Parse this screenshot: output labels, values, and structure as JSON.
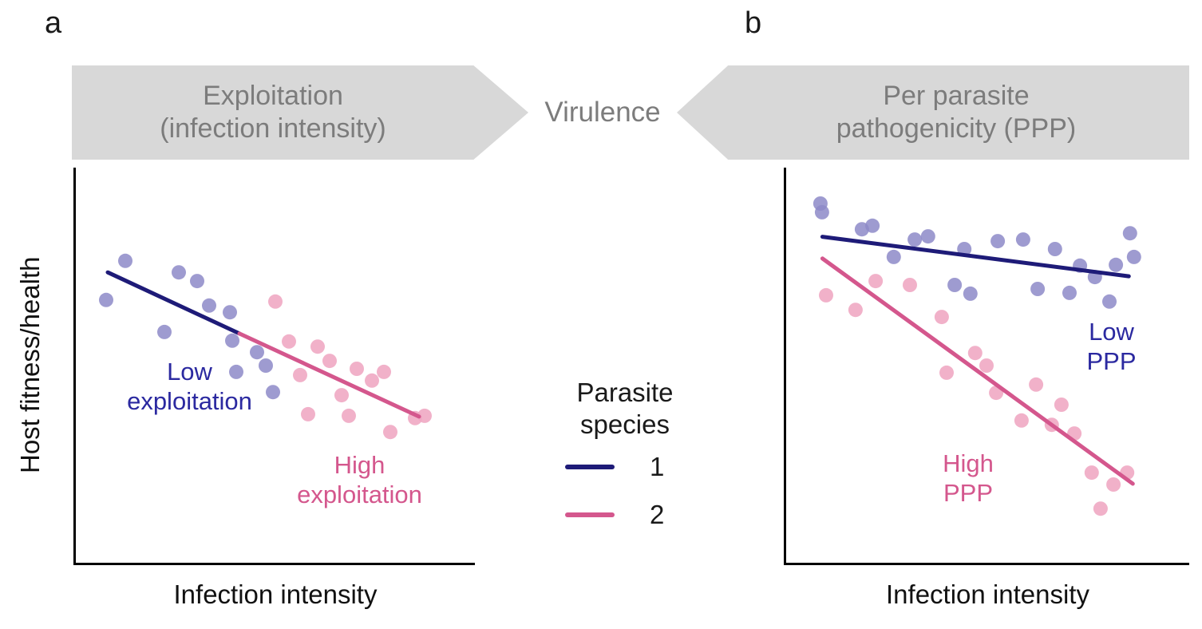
{
  "panels": {
    "a": {
      "label": "a",
      "ylabel": "Host fitness/health",
      "xlabel": "Infection intensity",
      "annotations": {
        "low": {
          "line1": "Low",
          "line2": "exploitation"
        },
        "high": {
          "line1": "High",
          "line2": "exploitation"
        }
      }
    },
    "b": {
      "label": "b",
      "xlabel": "Infection intensity",
      "annotations": {
        "low": {
          "line1": "Low",
          "line2": "PPP"
        },
        "high": {
          "line1": "High",
          "line2": "PPP"
        }
      }
    }
  },
  "banners": {
    "left": {
      "line1": "Exploitation",
      "line2": "(infection intensity)"
    },
    "center": "Virulence",
    "right": {
      "line1": "Per parasite",
      "line2": "pathogenicity (PPP)"
    }
  },
  "legend": {
    "title_line1": "Parasite",
    "title_line2": "species",
    "items": [
      {
        "label": "1",
        "color": "#1e1b78"
      },
      {
        "label": "2",
        "color": "#d4578d"
      }
    ]
  },
  "colors": {
    "background": "#ffffff",
    "banner_bg": "#d8d8d8",
    "banner_text": "#7c7c7c",
    "axis": "#000000",
    "navy_line": "#1e1b78",
    "navy_text": "#2b29a0",
    "pink_line": "#d4578d",
    "pink_text": "#d4578d",
    "purple_point": "#8d89c8",
    "pink_point": "#f0a9c3"
  },
  "chart_data": [
    {
      "id": "a",
      "type": "scatter",
      "title": "Exploitation (infection intensity)",
      "xlabel": "Infection intensity",
      "ylabel": "Host fitness/health",
      "xlim": [
        0,
        100
      ],
      "ylim": [
        0,
        100
      ],
      "grid": false,
      "ticks": "none (conceptual axes)",
      "point_radius": 9,
      "line_width": 5,
      "series": [
        {
          "name": "Parasite species 1",
          "slug": "species-1",
          "point_color": "#8d89c8",
          "point_opacity": 0.85,
          "points": [
            [
              7.6,
              66.5
            ],
            [
              12.4,
              76.4
            ],
            [
              22.2,
              58.4
            ],
            [
              25.8,
              73.5
            ],
            [
              30.4,
              71.3
            ],
            [
              33.4,
              65.1
            ],
            [
              38.6,
              63.4
            ],
            [
              39.2,
              56.2
            ],
            [
              40.2,
              48.3
            ],
            [
              45.4,
              53.3
            ],
            [
              47.6,
              49.9
            ],
            [
              49.4,
              43.2
            ]
          ]
        },
        {
          "name": "Parasite species 2",
          "slug": "species-2",
          "point_color": "#f0a9c3",
          "point_opacity": 0.9,
          "points": [
            [
              50.0,
              66.1
            ],
            [
              53.4,
              56.0
            ],
            [
              56.2,
              47.5
            ],
            [
              58.2,
              37.6
            ],
            [
              60.6,
              54.7
            ],
            [
              63.6,
              51.1
            ],
            [
              66.6,
              42.4
            ],
            [
              68.4,
              37.2
            ],
            [
              70.4,
              49.1
            ],
            [
              74.2,
              46.1
            ],
            [
              77.2,
              48.3
            ],
            [
              78.8,
              33.1
            ],
            [
              85.0,
              36.6
            ],
            [
              87.4,
              37.2
            ]
          ]
        }
      ],
      "trend_lines": [
        {
          "label": "Low exploitation",
          "slug": "low-exploitation-trend",
          "color": "#1e1b78",
          "x1": 8,
          "y1": 73.5,
          "x2": 41,
          "y2": 58
        },
        {
          "label": "High exploitation",
          "slug": "high-exploitation-trend",
          "color": "#d4578d",
          "x1": 41,
          "y1": 58,
          "x2": 86,
          "y2": 37
        }
      ]
    },
    {
      "id": "b",
      "type": "scatter",
      "title": "Per parasite pathogenicity (PPP)",
      "xlabel": "Infection intensity",
      "ylabel": "Host fitness/health",
      "xlim": [
        0,
        100
      ],
      "ylim": [
        0,
        100
      ],
      "grid": false,
      "ticks": "none (conceptual axes)",
      "point_radius": 9,
      "line_width": 5,
      "series": [
        {
          "name": "Parasite species 1",
          "slug": "species-1",
          "point_color": "#8d89c8",
          "point_opacity": 0.85,
          "points": [
            [
              8.5,
              90.9
            ],
            [
              8.9,
              88.7
            ],
            [
              18.8,
              84.4
            ],
            [
              21.4,
              85.3
            ],
            [
              26.7,
              77.4
            ],
            [
              31.9,
              81.8
            ],
            [
              35.2,
              82.6
            ],
            [
              41.8,
              70.3
            ],
            [
              44.2,
              79.4
            ],
            [
              45.7,
              68.1
            ],
            [
              52.5,
              81.4
            ],
            [
              58.8,
              81.8
            ],
            [
              62.4,
              69.3
            ],
            [
              66.7,
              79.4
            ],
            [
              70.3,
              68.3
            ],
            [
              72.9,
              75.2
            ],
            [
              76.6,
              72.3
            ],
            [
              80.2,
              66.1
            ],
            [
              81.8,
              75.4
            ],
            [
              85.3,
              83.4
            ],
            [
              86.3,
              77.4
            ]
          ]
        },
        {
          "name": "Parasite species 2",
          "slug": "species-2",
          "point_color": "#f0a9c3",
          "point_opacity": 0.9,
          "points": [
            [
              9.9,
              67.7
            ],
            [
              17.2,
              64.0
            ],
            [
              22.2,
              71.3
            ],
            [
              30.7,
              70.3
            ],
            [
              38.6,
              62.2
            ],
            [
              39.8,
              48.1
            ],
            [
              46.9,
              53.1
            ],
            [
              49.7,
              49.9
            ],
            [
              52.1,
              43.0
            ],
            [
              58.4,
              36.0
            ],
            [
              62.0,
              45.1
            ],
            [
              65.9,
              34.9
            ],
            [
              68.3,
              40.0
            ],
            [
              71.5,
              32.7
            ],
            [
              75.8,
              22.8
            ],
            [
              78.0,
              13.7
            ],
            [
              81.2,
              19.8
            ],
            [
              84.6,
              22.8
            ]
          ]
        }
      ],
      "trend_lines": [
        {
          "label": "Low PPP",
          "slug": "low-ppp-trend",
          "color": "#1e1b78",
          "x1": 9,
          "y1": 82.5,
          "x2": 85,
          "y2": 72.5
        },
        {
          "label": "High PPP",
          "slug": "high-ppp-trend",
          "color": "#d4578d",
          "x1": 9,
          "y1": 77,
          "x2": 86,
          "y2": 20
        }
      ]
    }
  ]
}
